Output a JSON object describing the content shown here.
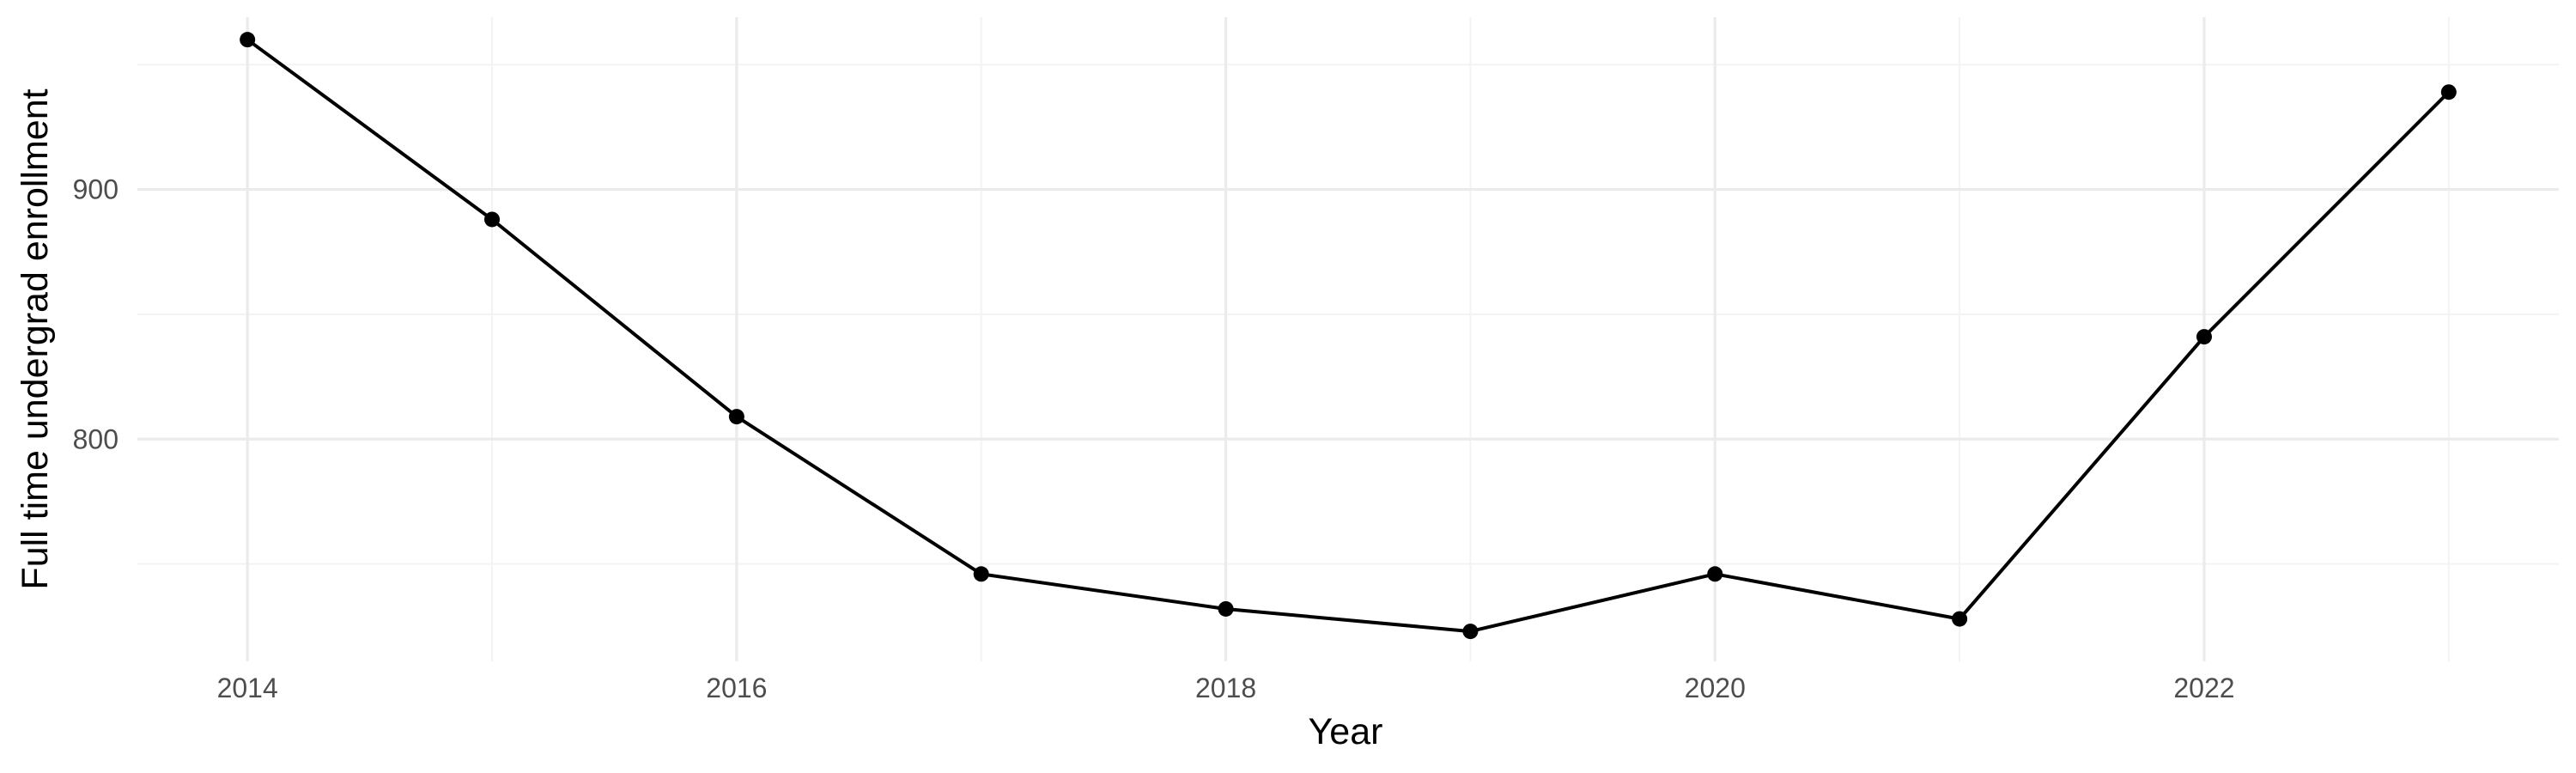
{
  "chart_data": {
    "type": "line",
    "xlabel": "Year",
    "ylabel": "Full time undergrad enrollment",
    "x_ticks": [
      2014,
      2016,
      2018,
      2020,
      2022
    ],
    "y_ticks": [
      800,
      900
    ],
    "xlim": [
      2013.55,
      2023.45
    ],
    "ylim": [
      711,
      969
    ],
    "grid": true,
    "series": [
      {
        "x": [
          2014,
          2015,
          2016,
          2017,
          2018,
          2019,
          2020,
          2021,
          2022,
          2023
        ],
        "y": [
          960,
          888,
          809,
          746,
          732,
          723,
          746,
          728,
          841,
          939
        ],
        "color": "#000000"
      }
    ]
  }
}
